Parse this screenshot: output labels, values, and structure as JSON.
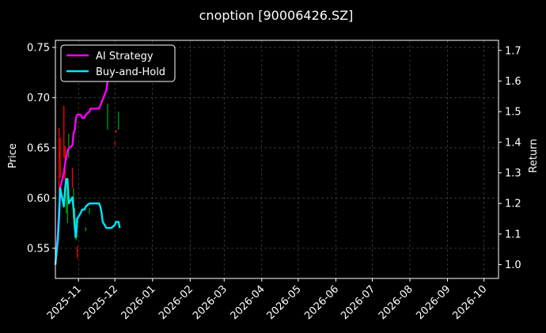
{
  "chart_data": {
    "type": "line",
    "title": "cnoption [90006426.SZ]",
    "ylabel": "Price",
    "ylabel_right": "Return",
    "ylim": [
      0.52,
      0.757
    ],
    "ylim_right": [
      0.955,
      1.733
    ],
    "xlim": [
      "2025-10-13",
      "2026-10-13"
    ],
    "x_ticks": [
      "2025-11",
      "2025-12",
      "2026-01",
      "2026-02",
      "2026-03",
      "2026-04",
      "2026-05",
      "2026-06",
      "2026-07",
      "2026-08",
      "2026-09",
      "2026-10"
    ],
    "y_ticks": [
      "0.55",
      "0.60",
      "0.65",
      "0.70",
      "0.75"
    ],
    "y_ticks_right": [
      "1.0",
      "1.1",
      "1.2",
      "1.3",
      "1.4",
      "1.5",
      "1.6",
      "1.7"
    ],
    "grid": true,
    "legend_position": "top-left",
    "colors": {
      "background": "#000000",
      "ai_strategy": "#ff00ff",
      "buy_and_hold": "#00e5ff",
      "up_candle": "#00a000",
      "down_candle": "#ff0000",
      "grid": "#555555"
    },
    "series": [
      {
        "name": "AI Strategy",
        "axis": "right",
        "x": [
          "2025-10-13",
          "2025-10-14",
          "2025-10-15",
          "2025-10-16",
          "2025-10-17",
          "2025-10-20",
          "2025-10-21",
          "2025-10-22",
          "2025-10-23",
          "2025-10-24",
          "2025-10-27",
          "2025-10-28",
          "2025-10-29",
          "2025-10-30",
          "2025-10-31",
          "2025-11-03",
          "2025-11-04",
          "2025-11-05",
          "2025-11-06",
          "2025-11-07",
          "2025-11-10",
          "2025-11-11",
          "2025-11-12",
          "2025-11-13",
          "2025-11-14",
          "2025-11-17",
          "2025-11-18",
          "2025-11-19",
          "2025-11-20",
          "2025-11-21",
          "2025-11-24",
          "2025-11-25",
          "2025-11-26",
          "2025-11-27",
          "2025-11-28",
          "2025-12-01",
          "2025-12-02",
          "2025-12-03",
          "2025-12-04",
          "2025-12-05"
        ],
        "values": [
          1.0,
          1.05,
          1.1,
          1.18,
          1.25,
          1.3,
          1.33,
          1.35,
          1.37,
          1.38,
          1.39,
          1.43,
          1.44,
          1.48,
          1.49,
          1.49,
          1.48,
          1.48,
          1.48,
          1.49,
          1.5,
          1.51,
          1.51,
          1.51,
          1.51,
          1.51,
          1.51,
          1.52,
          1.53,
          1.54,
          1.57,
          1.6,
          1.62,
          1.64,
          1.66,
          1.67,
          1.67,
          1.67,
          1.67,
          1.67
        ]
      },
      {
        "name": "Buy-and-Hold",
        "axis": "right",
        "x": [
          "2025-10-13",
          "2025-10-14",
          "2025-10-15",
          "2025-10-16",
          "2025-10-17",
          "2025-10-20",
          "2025-10-21",
          "2025-10-22",
          "2025-10-23",
          "2025-10-24",
          "2025-10-27",
          "2025-10-28",
          "2025-10-29",
          "2025-10-30",
          "2025-10-31",
          "2025-11-03",
          "2025-11-04",
          "2025-11-05",
          "2025-11-06",
          "2025-11-07",
          "2025-11-10",
          "2025-11-11",
          "2025-11-12",
          "2025-11-13",
          "2025-11-14",
          "2025-11-17",
          "2025-11-18",
          "2025-11-19",
          "2025-11-20",
          "2025-11-21",
          "2025-11-24",
          "2025-11-25",
          "2025-11-26",
          "2025-11-27",
          "2025-11-28",
          "2025-12-01",
          "2025-12-02",
          "2025-12-03",
          "2025-12-04",
          "2025-12-05"
        ],
        "values": [
          1.0,
          1.04,
          1.08,
          1.15,
          1.25,
          1.19,
          1.25,
          1.28,
          1.28,
          1.2,
          1.22,
          1.18,
          1.12,
          1.09,
          1.15,
          1.17,
          1.18,
          1.18,
          1.18,
          1.19,
          1.2,
          1.2,
          1.2,
          1.2,
          1.2,
          1.2,
          1.2,
          1.19,
          1.17,
          1.14,
          1.12,
          1.12,
          1.12,
          1.12,
          1.12,
          1.13,
          1.14,
          1.14,
          1.14,
          1.12
        ]
      }
    ],
    "candles": [
      {
        "x": "2025-10-16",
        "low": 0.6,
        "high": 0.67,
        "dir": "down"
      },
      {
        "x": "2025-10-17",
        "low": 0.62,
        "high": 0.66,
        "dir": "down"
      },
      {
        "x": "2025-10-20",
        "low": 0.64,
        "high": 0.692,
        "dir": "down"
      },
      {
        "x": "2025-10-21",
        "low": 0.6,
        "high": 0.652,
        "dir": "down"
      },
      {
        "x": "2025-10-22",
        "low": 0.585,
        "high": 0.615,
        "dir": "up"
      },
      {
        "x": "2025-10-23",
        "low": 0.575,
        "high": 0.605,
        "dir": "up"
      },
      {
        "x": "2025-10-24",
        "low": 0.64,
        "high": 0.664,
        "dir": "up"
      },
      {
        "x": "2025-10-27",
        "low": 0.61,
        "high": 0.63,
        "dir": "down"
      },
      {
        "x": "2025-10-28",
        "low": 0.58,
        "high": 0.61,
        "dir": "up"
      },
      {
        "x": "2025-10-29",
        "low": 0.56,
        "high": 0.59,
        "dir": "up"
      },
      {
        "x": "2025-10-30",
        "low": 0.558,
        "high": 0.58,
        "dir": "up"
      },
      {
        "x": "2025-10-31",
        "low": 0.54,
        "high": 0.552,
        "dir": "down"
      },
      {
        "x": "2025-11-07",
        "low": 0.567,
        "high": 0.571,
        "dir": "up"
      },
      {
        "x": "2025-11-10",
        "low": 0.584,
        "high": 0.59,
        "dir": "up"
      },
      {
        "x": "2025-11-25",
        "low": 0.668,
        "high": 0.694,
        "dir": "up"
      },
      {
        "x": "2025-12-01",
        "low": 0.653,
        "high": 0.656,
        "dir": "down"
      },
      {
        "x": "2025-12-02",
        "low": 0.665,
        "high": 0.668,
        "dir": "down"
      },
      {
        "x": "2025-12-04",
        "low": 0.668,
        "high": 0.686,
        "dir": "up"
      }
    ]
  }
}
